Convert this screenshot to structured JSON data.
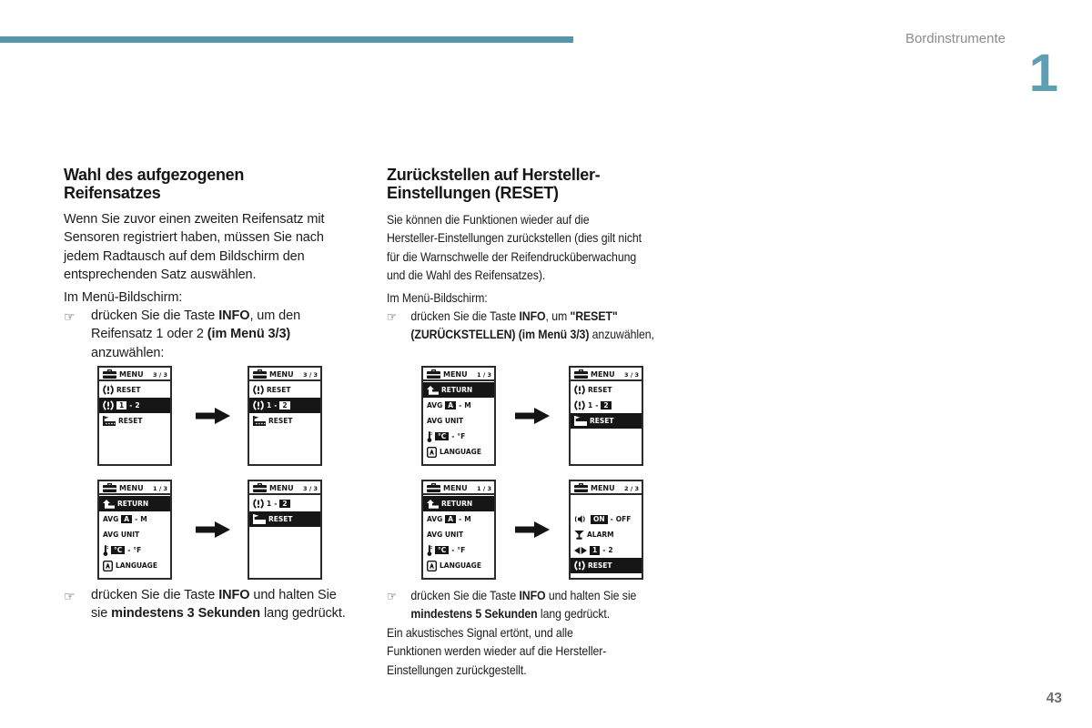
{
  "page": {
    "header_label": "Bordinstrumente",
    "chapter_number": "1",
    "page_number": "43",
    "accent_color": "#5695ab",
    "chapter_number_color": "#5d9fb3",
    "bullet_icon": "pointing-hand-icon"
  },
  "left_column": {
    "heading_lines": [
      "Wahl des aufgezogenen",
      "Reifensatzes"
    ],
    "intro_lines": [
      "Wenn Sie zuvor einen zweiten Reifensatz mit",
      "Sensoren registriert haben, müssen Sie nach",
      "jedem Radtausch auf dem Bildschirm den",
      "entsprechenden Satz auswählen."
    ],
    "menu_line": "Im Menü-Bildschirm:",
    "bullet1": [
      {
        "text": "drücken Sie die Taste "
      },
      {
        "text": "INFO",
        "bold": true
      },
      {
        "text": ", um den Reifensatz 1 oder 2 "
      },
      {
        "text": "(im Menü 3/3)",
        "bold": true
      },
      {
        "text": " anzuwählen:"
      }
    ],
    "bullet2": [
      {
        "text": "drücken Sie die Taste "
      },
      {
        "text": "INFO",
        "bold": true
      },
      {
        "text": " und halten Sie sie "
      },
      {
        "text": "mindestens 3 Sekunden",
        "bold": true
      },
      {
        "text": " lang gedrückt."
      }
    ]
  },
  "right_column": {
    "heading_lines": [
      "Zurückstellen auf Hersteller-",
      "Einstellungen (RESET)"
    ],
    "intro_lines": [
      "Sie können die Funktionen wieder auf die",
      "Hersteller-Einstellungen zurückstellen (dies gilt nicht",
      "für die Warnschwelle der Reifendrucküberwachung",
      "und die Wahl des Reifensatzes)."
    ],
    "menu_line": "Im Menü-Bildschirm:",
    "bullet1": [
      {
        "text": "drücken Sie die Taste "
      },
      {
        "text": "INFO",
        "bold": true
      },
      {
        "text": ", um "
      },
      {
        "text": "\"RESET\" (ZURÜCKSTELLEN) (im Menü 3/3)",
        "bold": true
      },
      {
        "text": " anzuwählen,"
      }
    ],
    "bullet2": [
      {
        "text": "drücken Sie die Taste "
      },
      {
        "text": "INFO",
        "bold": true
      },
      {
        "text": " und halten Sie sie "
      },
      {
        "text": "mindestens 5 Sekunden",
        "bold": true
      },
      {
        "text": " lang gedrückt."
      }
    ],
    "outro_lines": [
      "Ein akustisches Signal ertönt, und alle",
      "Funktionen werden wieder auf die Hersteller-",
      "Einstellungen zurückgestellt."
    ]
  },
  "screens": {
    "tire_select_1": {
      "title": "MENU",
      "page": "3 / 3",
      "rows": [
        {
          "segs": [
            {
              "icon": "tpms-warning-icon"
            },
            {
              "text": "RESET"
            }
          ]
        },
        {
          "hl": true,
          "segs": [
            {
              "icon": "tire-set-icon"
            },
            {
              "box": "1"
            },
            {
              "text": "-"
            },
            {
              "text": "2"
            }
          ]
        },
        {
          "segs": [
            {
              "icon": "factory-icon"
            },
            {
              "text": "RESET"
            }
          ]
        }
      ]
    },
    "tire_select_2": {
      "title": "MENU",
      "page": "3 / 3",
      "rows": [
        {
          "segs": [
            {
              "icon": "tpms-warning-icon"
            },
            {
              "text": "RESET"
            }
          ]
        },
        {
          "hl": true,
          "segs": [
            {
              "icon": "tire-set-icon"
            },
            {
              "text": "1"
            },
            {
              "text": "-"
            },
            {
              "box": "2"
            }
          ]
        },
        {
          "segs": [
            {
              "icon": "factory-icon"
            },
            {
              "text": "RESET"
            }
          ]
        }
      ]
    },
    "settings_menu": {
      "title": "MENU",
      "page": "1 / 3",
      "rows": [
        {
          "hl": true,
          "segs": [
            {
              "icon": "return-icon"
            },
            {
              "text": "RETURN"
            }
          ]
        },
        {
          "segs": [
            {
              "text": "AVG"
            },
            {
              "box": "A"
            },
            {
              "text": "-"
            },
            {
              "text": "M"
            }
          ]
        },
        {
          "segs": [
            {
              "text": "AVG UNIT"
            }
          ]
        },
        {
          "segs": [
            {
              "icon": "thermometer-icon"
            },
            {
              "box": "°C"
            },
            {
              "text": "-"
            },
            {
              "text": "°F"
            }
          ]
        },
        {
          "segs": [
            {
              "icon": "language-icon"
            },
            {
              "text": "LANGUAGE"
            }
          ]
        }
      ]
    },
    "tire_reset": {
      "title": "MENU",
      "page": "3 / 3",
      "rows": [
        {
          "segs": [
            {
              "icon": "tire-set-icon"
            },
            {
              "text": "1"
            },
            {
              "text": "-"
            },
            {
              "box": "2"
            }
          ]
        },
        {
          "hl": true,
          "segs": [
            {
              "icon": "factory-icon"
            },
            {
              "text": "RESET"
            }
          ]
        }
      ]
    },
    "factory_reset": {
      "title": "MENU",
      "page": "3 / 3",
      "rows": [
        {
          "segs": [
            {
              "icon": "tpms-warning-icon"
            },
            {
              "text": "RESET"
            }
          ]
        },
        {
          "segs": [
            {
              "icon": "tire-set-icon"
            },
            {
              "text": "1"
            },
            {
              "text": "-"
            },
            {
              "box": "2"
            }
          ]
        },
        {
          "hl": true,
          "segs": [
            {
              "icon": "factory-icon"
            },
            {
              "text": "RESET"
            }
          ]
        }
      ]
    },
    "alarm_menu": {
      "title": "MENU",
      "page": "2 / 3",
      "rows": [
        {
          "spacer": 2.2
        },
        {
          "segs": [
            {
              "icon": "speaker-icon"
            },
            {
              "box": "ON"
            },
            {
              "text": "-"
            },
            {
              "text": "OFF"
            }
          ]
        },
        {
          "segs": [
            {
              "icon": "alarm-icon"
            },
            {
              "text": "ALARM"
            }
          ]
        },
        {
          "segs": [
            {
              "icon": "arrows-icon"
            },
            {
              "box": "1"
            },
            {
              "text": "-"
            },
            {
              "text": "2"
            }
          ]
        },
        {
          "hl": true,
          "segs": [
            {
              "icon": "tpms-warning-icon"
            },
            {
              "text": "RESET"
            }
          ]
        },
        {
          "spacer": 0.6
        }
      ]
    }
  },
  "diagrams": {
    "left_top": {
      "before": "tire_select_1",
      "after": "tire_select_2"
    },
    "left_bottom": {
      "before": "settings_menu",
      "after": "tire_reset"
    },
    "right_top": {
      "before": "settings_menu",
      "after": "factory_reset"
    },
    "right_bottom": {
      "before": "settings_menu",
      "after": "alarm_menu"
    }
  }
}
